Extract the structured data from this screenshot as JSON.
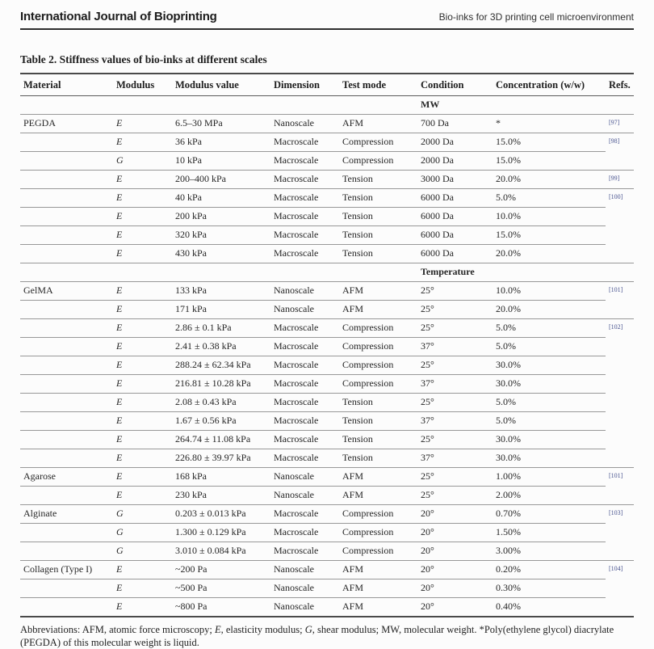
{
  "page_header": {
    "journal": "International Journal of Bioprinting",
    "article": "Bio-inks for 3D printing cell microenvironment"
  },
  "table": {
    "title": "Table 2. Stiffness values of bio-inks at different scales",
    "columns": [
      "Material",
      "Modulus",
      "Modulus value",
      "Dimension",
      "Test mode",
      "Condition",
      "Concentration (w/w)",
      "Refs."
    ],
    "rows": [
      {
        "type": "subheader",
        "label": "MW"
      },
      {
        "material": "PEGDA",
        "modulus": "E",
        "value": "6.5–30 MPa",
        "dimension": "Nanoscale",
        "test_mode": "AFM",
        "condition": "700 Da",
        "concentration": "*",
        "ref": "[97]"
      },
      {
        "material": "",
        "modulus": "E",
        "value": "36 kPa",
        "dimension": "Macroscale",
        "test_mode": "Compression",
        "condition": "2000 Da",
        "concentration": "15.0%",
        "ref": "[98]"
      },
      {
        "material": "",
        "modulus": "G",
        "value": "10 kPa",
        "dimension": "Macroscale",
        "test_mode": "Compression",
        "condition": "2000 Da",
        "concentration": "15.0%",
        "ref": ""
      },
      {
        "material": "",
        "modulus": "E",
        "value": "200–400 kPa",
        "dimension": "Macroscale",
        "test_mode": "Tension",
        "condition": "3000 Da",
        "concentration": "20.0%",
        "ref": "[99]"
      },
      {
        "material": "",
        "modulus": "E",
        "value": "40 kPa",
        "dimension": "Macroscale",
        "test_mode": "Tension",
        "condition": "6000 Da",
        "concentration": "5.0%",
        "ref": "[100]"
      },
      {
        "material": "",
        "modulus": "E",
        "value": "200 kPa",
        "dimension": "Macroscale",
        "test_mode": "Tension",
        "condition": "6000 Da",
        "concentration": "10.0%",
        "ref": ""
      },
      {
        "material": "",
        "modulus": "E",
        "value": "320 kPa",
        "dimension": "Macroscale",
        "test_mode": "Tension",
        "condition": "6000 Da",
        "concentration": "15.0%",
        "ref": ""
      },
      {
        "material": "",
        "modulus": "E",
        "value": "430 kPa",
        "dimension": "Macroscale",
        "test_mode": "Tension",
        "condition": "6000 Da",
        "concentration": "20.0%",
        "ref": ""
      },
      {
        "type": "subheader",
        "label": "Temperature"
      },
      {
        "material": "GelMA",
        "modulus": "E",
        "value": "133 kPa",
        "dimension": "Nanoscale",
        "test_mode": "AFM",
        "condition": "25°",
        "concentration": "10.0%",
        "ref": "[101]"
      },
      {
        "material": "",
        "modulus": "E",
        "value": "171 kPa",
        "dimension": "Nanoscale",
        "test_mode": "AFM",
        "condition": "25°",
        "concentration": "20.0%",
        "ref": ""
      },
      {
        "material": "",
        "modulus": "E",
        "value": "2.86 ± 0.1 kPa",
        "dimension": "Macroscale",
        "test_mode": "Compression",
        "condition": "25°",
        "concentration": "5.0%",
        "ref": "[102]"
      },
      {
        "material": "",
        "modulus": "E",
        "value": "2.41 ± 0.38 kPa",
        "dimension": "Macroscale",
        "test_mode": "Compression",
        "condition": "37°",
        "concentration": "5.0%",
        "ref": ""
      },
      {
        "material": "",
        "modulus": "E",
        "value": "288.24 ± 62.34 kPa",
        "dimension": "Macroscale",
        "test_mode": "Compression",
        "condition": "25°",
        "concentration": "30.0%",
        "ref": ""
      },
      {
        "material": "",
        "modulus": "E",
        "value": "216.81 ± 10.28 kPa",
        "dimension": "Macroscale",
        "test_mode": "Compression",
        "condition": "37°",
        "concentration": "30.0%",
        "ref": ""
      },
      {
        "material": "",
        "modulus": "E",
        "value": "2.08 ± 0.43 kPa",
        "dimension": "Macroscale",
        "test_mode": "Tension",
        "condition": "25°",
        "concentration": "5.0%",
        "ref": ""
      },
      {
        "material": "",
        "modulus": "E",
        "value": "1.67 ± 0.56 kPa",
        "dimension": "Macroscale",
        "test_mode": "Tension",
        "condition": "37°",
        "concentration": "5.0%",
        "ref": ""
      },
      {
        "material": "",
        "modulus": "E",
        "value": "264.74 ± 11.08 kPa",
        "dimension": "Macroscale",
        "test_mode": "Tension",
        "condition": "25°",
        "concentration": "30.0%",
        "ref": ""
      },
      {
        "material": "",
        "modulus": "E",
        "value": "226.80 ± 39.97 kPa",
        "dimension": "Macroscale",
        "test_mode": "Tension",
        "condition": "37°",
        "concentration": "30.0%",
        "ref": ""
      },
      {
        "material": "Agarose",
        "modulus": "E",
        "value": "168 kPa",
        "dimension": "Nanoscale",
        "test_mode": "AFM",
        "condition": "25°",
        "concentration": "1.00%",
        "ref": "[101]"
      },
      {
        "material": "",
        "modulus": "E",
        "value": "230 kPa",
        "dimension": "Nanoscale",
        "test_mode": "AFM",
        "condition": "25°",
        "concentration": "2.00%",
        "ref": ""
      },
      {
        "material": "Alginate",
        "modulus": "G",
        "value": "0.203 ± 0.013 kPa",
        "dimension": "Macroscale",
        "test_mode": "Compression",
        "condition": "20°",
        "concentration": "0.70%",
        "ref": "[103]"
      },
      {
        "material": "",
        "modulus": "G",
        "value": "1.300 ± 0.129 kPa",
        "dimension": "Macroscale",
        "test_mode": "Compression",
        "condition": "20°",
        "concentration": "1.50%",
        "ref": ""
      },
      {
        "material": "",
        "modulus": "G",
        "value": "3.010 ± 0.084 kPa",
        "dimension": "Macroscale",
        "test_mode": "Compression",
        "condition": "20°",
        "concentration": "3.00%",
        "ref": ""
      },
      {
        "material": "Collagen (Type I)",
        "modulus": "E",
        "value": "~200 Pa",
        "dimension": "Nanoscale",
        "test_mode": "AFM",
        "condition": "20°",
        "concentration": "0.20%",
        "ref": "[104]"
      },
      {
        "material": "",
        "modulus": "E",
        "value": "~500 Pa",
        "dimension": "Nanoscale",
        "test_mode": "AFM",
        "condition": "20°",
        "concentration": "0.30%",
        "ref": ""
      },
      {
        "material": "",
        "modulus": "E",
        "value": "~800 Pa",
        "dimension": "Nanoscale",
        "test_mode": "AFM",
        "condition": "20°",
        "concentration": "0.40%",
        "ref": ""
      }
    ]
  },
  "footnote": {
    "segments": [
      {
        "text": "Abbreviations: AFM, atomic force microscopy; "
      },
      {
        "text": "E",
        "italic": true
      },
      {
        "text": ", elasticity modulus; "
      },
      {
        "text": "G",
        "italic": true
      },
      {
        "text": ", shear modulus; MW, molecular weight. *Poly(ethylene glycol) diacrylate (PEGDA) of this molecular weight is liquid."
      }
    ]
  },
  "colors": {
    "citation_link": "#4a5590",
    "row_line": "#989898",
    "table_border": "#4a4a4a"
  }
}
